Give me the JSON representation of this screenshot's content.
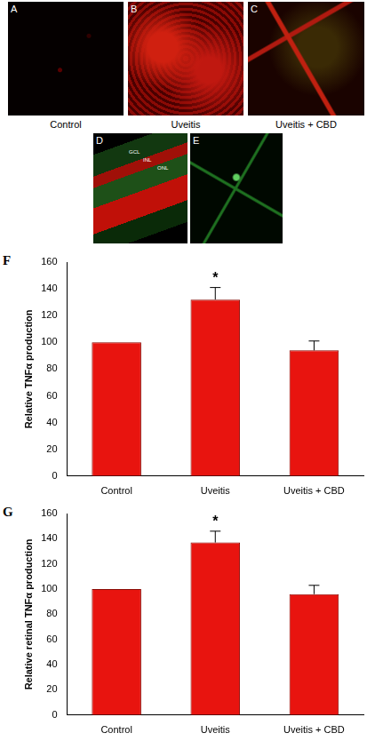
{
  "panels": [
    {
      "label": "A",
      "caption": "Control"
    },
    {
      "label": "B",
      "caption": "Uveitis"
    },
    {
      "label": "C",
      "caption": "Uveitis + CBD"
    },
    {
      "label": "D",
      "layers": [
        "GCL",
        "INL",
        "ONL"
      ]
    },
    {
      "label": "E"
    }
  ],
  "chart_data": [
    {
      "type": "bar",
      "panel": "F",
      "categories": [
        "Control",
        "Uveitis",
        "Uveitis + CBD"
      ],
      "values": [
        100,
        132,
        94
      ],
      "errors": [
        null,
        9,
        7
      ],
      "color": "#e8140f",
      "y_label": "Relative TNFα production",
      "ylim": [
        0,
        160
      ],
      "yticks": [
        0,
        20,
        40,
        60,
        80,
        100,
        120,
        140,
        160
      ],
      "grid": false,
      "annotations": [
        {
          "category": "Uveitis",
          "text": "*"
        }
      ]
    },
    {
      "type": "bar",
      "panel": "G",
      "categories": [
        "Control",
        "Uveitis",
        "Uveitis + CBD"
      ],
      "values": [
        100,
        137,
        96
      ],
      "errors": [
        null,
        9,
        7
      ],
      "color": "#e8140f",
      "y_label": "Relative retinal TNFα production",
      "ylim": [
        0,
        160
      ],
      "yticks": [
        0,
        20,
        40,
        60,
        80,
        100,
        120,
        140,
        160
      ],
      "grid": false,
      "annotations": [
        {
          "category": "Uveitis",
          "text": "*"
        }
      ]
    }
  ]
}
